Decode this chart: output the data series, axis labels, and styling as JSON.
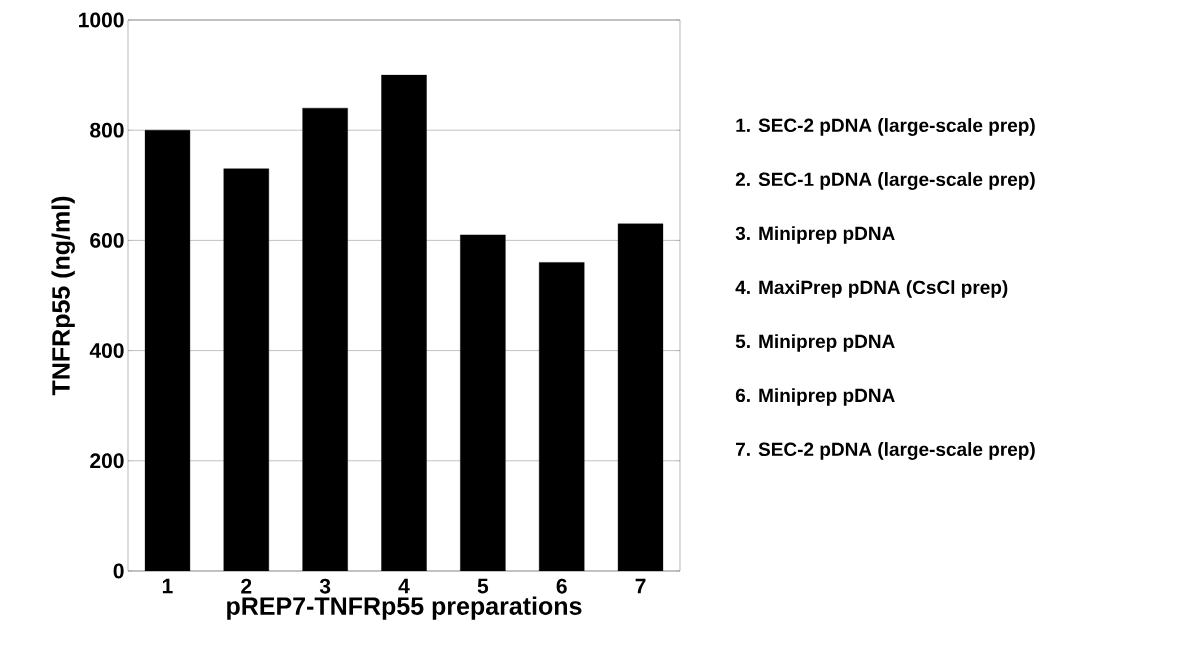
{
  "chart_data": {
    "type": "bar",
    "xlabel": "pREP7-TNFRp55 preparations",
    "ylabel": "TNFRp55  (ng/ml)",
    "categories": [
      "1",
      "2",
      "3",
      "4",
      "5",
      "6",
      "7"
    ],
    "values": [
      800,
      730,
      840,
      900,
      610,
      560,
      630
    ],
    "color": "#000000",
    "ylim": [
      0,
      1000
    ],
    "yticks": [
      0,
      200,
      400,
      600,
      800,
      1000
    ],
    "grid": "y",
    "annotations": [
      "1. SEC-2 pDNA (large-scale prep)",
      "2. SEC-1 pDNA (large-scale prep)",
      "3. Miniprep pDNA",
      "4. MaxiPrep pDNA (CsCl prep)",
      "5. Miniprep pDNA",
      "6. Miniprep pDNA",
      "7. SEC-2 pDNA (large-scale prep)"
    ]
  }
}
